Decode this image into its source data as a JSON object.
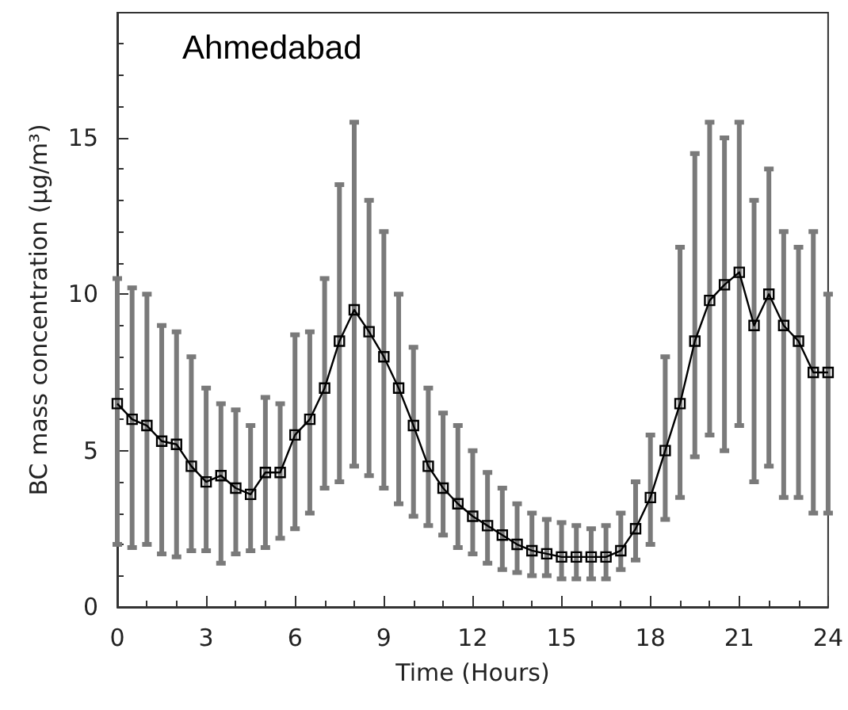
{
  "chart_data": {
    "type": "line",
    "xlabel": "Time (Hours)",
    "ylabel": "BC mass concentration (μg/m³)",
    "annotations": [
      "Ahmedabad"
    ],
    "x": [
      0,
      0.5,
      1,
      1.5,
      2,
      2.5,
      3,
      3.5,
      4,
      4.5,
      5,
      5.5,
      6,
      6.5,
      7,
      7.5,
      8,
      8.5,
      9,
      9.5,
      10,
      10.5,
      11,
      11.5,
      12,
      12.5,
      13,
      13.5,
      14,
      14.5,
      15,
      15.5,
      16,
      16.5,
      17,
      17.5,
      18,
      18.5,
      19,
      19.5,
      20,
      20.5,
      21,
      21.5,
      22,
      22.5,
      23,
      23.5,
      24
    ],
    "series": [
      {
        "color": "#000000",
        "values": [
          6.5,
          6.0,
          5.8,
          5.3,
          5.2,
          4.5,
          4.0,
          4.2,
          3.8,
          3.6,
          4.3,
          4.3,
          5.5,
          6.0,
          7.0,
          8.5,
          9.5,
          8.8,
          8.0,
          7.0,
          5.8,
          4.5,
          3.8,
          3.3,
          2.9,
          2.6,
          2.3,
          2.0,
          1.8,
          1.7,
          1.6,
          1.6,
          1.6,
          1.6,
          1.8,
          2.5,
          3.5,
          5.0,
          6.5,
          8.5,
          9.8,
          10.3,
          10.7,
          9.0,
          10.0,
          9.0,
          8.5,
          7.5,
          7.5
        ],
        "errors": [
          [
            2.0,
            10.5
          ],
          [
            1.9,
            10.2
          ],
          [
            2.0,
            10.0
          ],
          [
            1.7,
            9.0
          ],
          [
            1.6,
            8.8
          ],
          [
            1.8,
            8.0
          ],
          [
            1.8,
            7.0
          ],
          [
            1.4,
            6.5
          ],
          [
            1.7,
            6.3
          ],
          [
            1.8,
            5.8
          ],
          [
            1.9,
            6.7
          ],
          [
            2.2,
            6.5
          ],
          [
            2.5,
            8.7
          ],
          [
            3.0,
            8.8
          ],
          [
            3.8,
            10.5
          ],
          [
            4.0,
            13.5
          ],
          [
            4.5,
            15.5
          ],
          [
            4.2,
            13.0
          ],
          [
            3.8,
            12.0
          ],
          [
            3.3,
            10.0
          ],
          [
            2.9,
            8.3
          ],
          [
            2.6,
            7.0
          ],
          [
            2.3,
            6.2
          ],
          [
            1.9,
            5.8
          ],
          [
            1.7,
            5.0
          ],
          [
            1.4,
            4.3
          ],
          [
            1.2,
            3.8
          ],
          [
            1.1,
            3.3
          ],
          [
            1.0,
            3.0
          ],
          [
            1.0,
            2.8
          ],
          [
            0.9,
            2.7
          ],
          [
            0.9,
            2.6
          ],
          [
            0.9,
            2.5
          ],
          [
            0.9,
            2.6
          ],
          [
            1.2,
            3.0
          ],
          [
            1.5,
            4.0
          ],
          [
            2.0,
            5.5
          ],
          [
            2.8,
            8.0
          ],
          [
            3.5,
            11.5
          ],
          [
            4.8,
            14.5
          ],
          [
            5.5,
            15.5
          ],
          [
            5.0,
            15.0
          ],
          [
            5.8,
            15.5
          ],
          [
            4.0,
            13.0
          ],
          [
            4.5,
            14.0
          ],
          [
            3.5,
            12.0
          ],
          [
            3.5,
            11.5
          ],
          [
            3.0,
            12.0
          ],
          [
            3.0,
            10.0
          ]
        ]
      }
    ],
    "xlim": [
      0,
      24
    ],
    "xticks": [
      0,
      3,
      6,
      9,
      12,
      15,
      18,
      21,
      24
    ],
    "ylim": [
      0,
      19
    ],
    "yticks": [
      0,
      5,
      10,
      15
    ],
    "marker": "square",
    "line_style": "solid",
    "grid": false
  }
}
